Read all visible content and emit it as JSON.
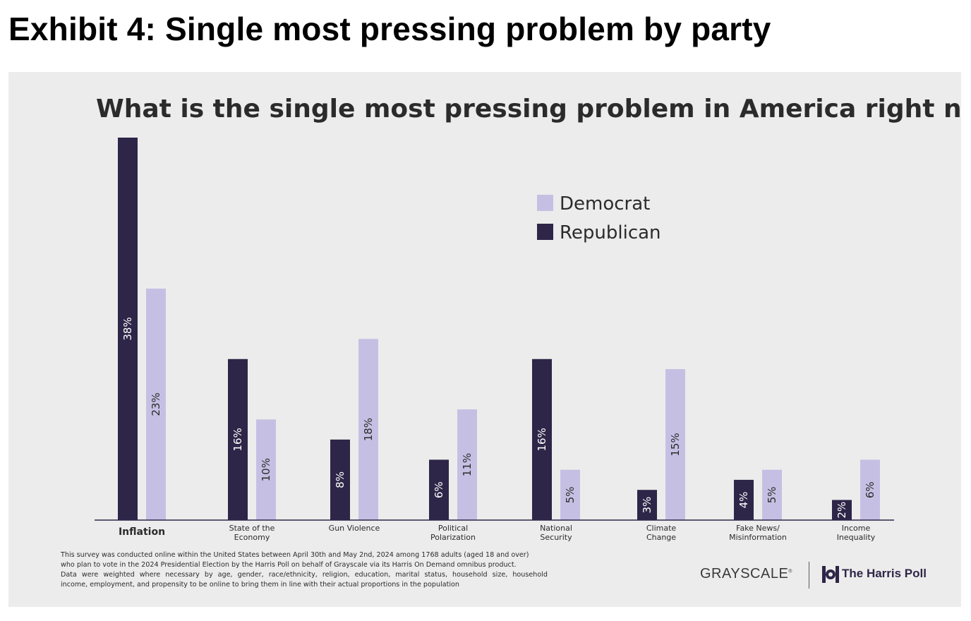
{
  "exhibit_title": "Exhibit 4: Single most pressing problem by party",
  "colors": {
    "democrat": "#c5c0e3",
    "republican": "#2e2648",
    "panel_bg": "#ececec",
    "axis": "#2e2648"
  },
  "chart_data": {
    "type": "bar",
    "title": "What is the single most pressing problem in America right now?",
    "categories": [
      [
        "Inflation"
      ],
      [
        "State of the",
        "Economy"
      ],
      [
        "Gun Violence"
      ],
      [
        "Political",
        "Polarization"
      ],
      [
        "National",
        "Security"
      ],
      [
        "Climate",
        "Change"
      ],
      [
        "Fake News/",
        "Misinformation"
      ],
      [
        "Income",
        "Inequality"
      ]
    ],
    "series": [
      {
        "name": "Republican",
        "color": "#2e2648",
        "values": [
          38,
          16,
          8,
          6,
          16,
          3,
          4,
          2
        ],
        "labels": [
          "38%",
          "16%",
          "8%",
          "6%",
          "16%",
          "3%",
          "4%",
          "2%"
        ]
      },
      {
        "name": "Democrat",
        "color": "#c5c0e3",
        "values": [
          23,
          10,
          18,
          11,
          5,
          15,
          5,
          6
        ],
        "labels": [
          "23%",
          "10%",
          "18%",
          "11%",
          "5%",
          "15%",
          "5%",
          "6%"
        ]
      }
    ],
    "legend": {
      "entries": [
        "Democrat",
        "Republican"
      ],
      "position": "top-right"
    },
    "xlabel": "",
    "ylabel": "",
    "ylim": [
      0,
      38
    ],
    "grid": false
  },
  "footnote": [
    "This survey was conducted online within the United States between April 30th and May 2nd, 2024 among 1768 adults (aged 18 and over)",
    "who plan to vote in the 2024 Presidential Election by the Harris Poll on behalf of Grayscale via its Harris On Demand omnibus product.",
    "Data were weighted where necessary by age, gender, race/ethnicity, religion, education, marital status, household size, household",
    "income, employment, and propensity to be online to bring them in line with their actual proportions in the population"
  ],
  "logos": {
    "grayscale": "GRAYSCALE",
    "grayscale_mark": "®",
    "harris": "The Harris Poll",
    "harris_icon": "harris-poll-mark-icon"
  }
}
